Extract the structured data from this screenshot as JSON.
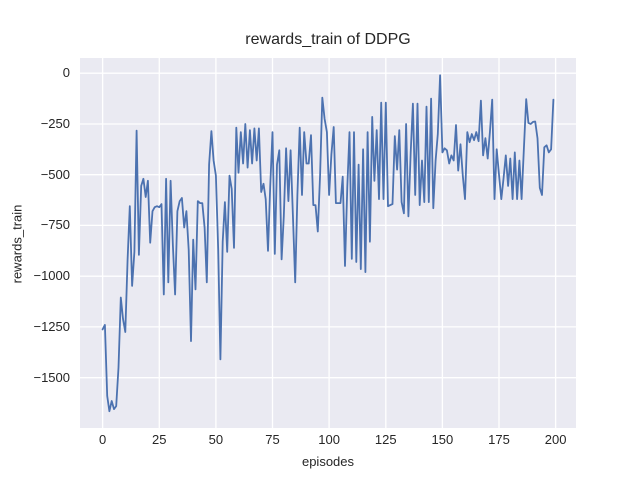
{
  "chart_data": {
    "type": "line",
    "title": "rewards_train of DDPG",
    "xlabel": "episodes",
    "ylabel": "rewards_train",
    "xlim": [
      -10,
      209
    ],
    "ylim": [
      -1748,
      75
    ],
    "x_ticks": [
      0,
      25,
      50,
      75,
      100,
      125,
      150,
      175,
      200
    ],
    "x_tick_labels": [
      "0",
      "25",
      "50",
      "75",
      "100",
      "125",
      "150",
      "175",
      "200"
    ],
    "y_ticks": [
      0,
      -250,
      -500,
      -750,
      -1000,
      -1250,
      -1500
    ],
    "y_tick_labels": [
      "0",
      "−250",
      "−500",
      "−750",
      "−1000",
      "−1250",
      "−1500"
    ],
    "grid": true,
    "legend": false,
    "style": {
      "figure_background": "#FFFFFF",
      "plot_background": "#EAEAF2",
      "grid_color": "#FFFFFF",
      "text_color": "#262626",
      "line_color": "#4C72B0"
    },
    "series": [
      {
        "name": "rewards_train",
        "color": "#4C72B0",
        "linewidth": 1.8,
        "x_start": 0,
        "x_step": 1,
        "y": [
          -1262,
          -1240,
          -1590,
          -1665,
          -1615,
          -1655,
          -1640,
          -1450,
          -1105,
          -1210,
          -1275,
          -917,
          -655,
          -1048,
          -880,
          -283,
          -895,
          -555,
          -520,
          -610,
          -530,
          -835,
          -680,
          -660,
          -655,
          -660,
          -645,
          -1090,
          -520,
          -1030,
          -530,
          -850,
          -1090,
          -680,
          -630,
          -615,
          -760,
          -680,
          -870,
          -1320,
          -820,
          -1065,
          -630,
          -640,
          -640,
          -760,
          -1030,
          -450,
          -285,
          -430,
          -505,
          -870,
          -1410,
          -830,
          -635,
          -880,
          -505,
          -570,
          -860,
          -268,
          -490,
          -290,
          -445,
          -250,
          -465,
          -280,
          -445,
          -272,
          -430,
          -272,
          -585,
          -545,
          -620,
          -875,
          -560,
          -290,
          -890,
          -450,
          -380,
          -917,
          -705,
          -370,
          -630,
          -380,
          -700,
          -1030,
          -600,
          -268,
          -600,
          -290,
          -445,
          -445,
          -305,
          -650,
          -650,
          -780,
          -500,
          -120,
          -225,
          -290,
          -600,
          -400,
          -265,
          -640,
          -640,
          -640,
          -510,
          -950,
          -560,
          -290,
          -915,
          -290,
          -930,
          -450,
          -965,
          -375,
          -980,
          -290,
          -830,
          -215,
          -530,
          -280,
          -620,
          -145,
          -620,
          -145,
          -655,
          -650,
          -645,
          -310,
          -475,
          -280,
          -635,
          -690,
          -250,
          -705,
          -390,
          -150,
          -600,
          -150,
          -650,
          -430,
          -635,
          -165,
          -635,
          -125,
          -665,
          -430,
          -300,
          -10,
          -390,
          -370,
          -380,
          -445,
          -405,
          -430,
          -255,
          -480,
          -350,
          -505,
          -620,
          -290,
          -340,
          -300,
          -330,
          -290,
          -335,
          -135,
          -405,
          -320,
          -420,
          -290,
          -130,
          -620,
          -375,
          -500,
          -620,
          -520,
          -405,
          -555,
          -420,
          -620,
          -390,
          -620,
          -430,
          -620,
          -370,
          -128,
          -245,
          -250,
          -240,
          -238,
          -320,
          -565,
          -600,
          -365,
          -355,
          -390,
          -375,
          -130
        ]
      }
    ]
  }
}
